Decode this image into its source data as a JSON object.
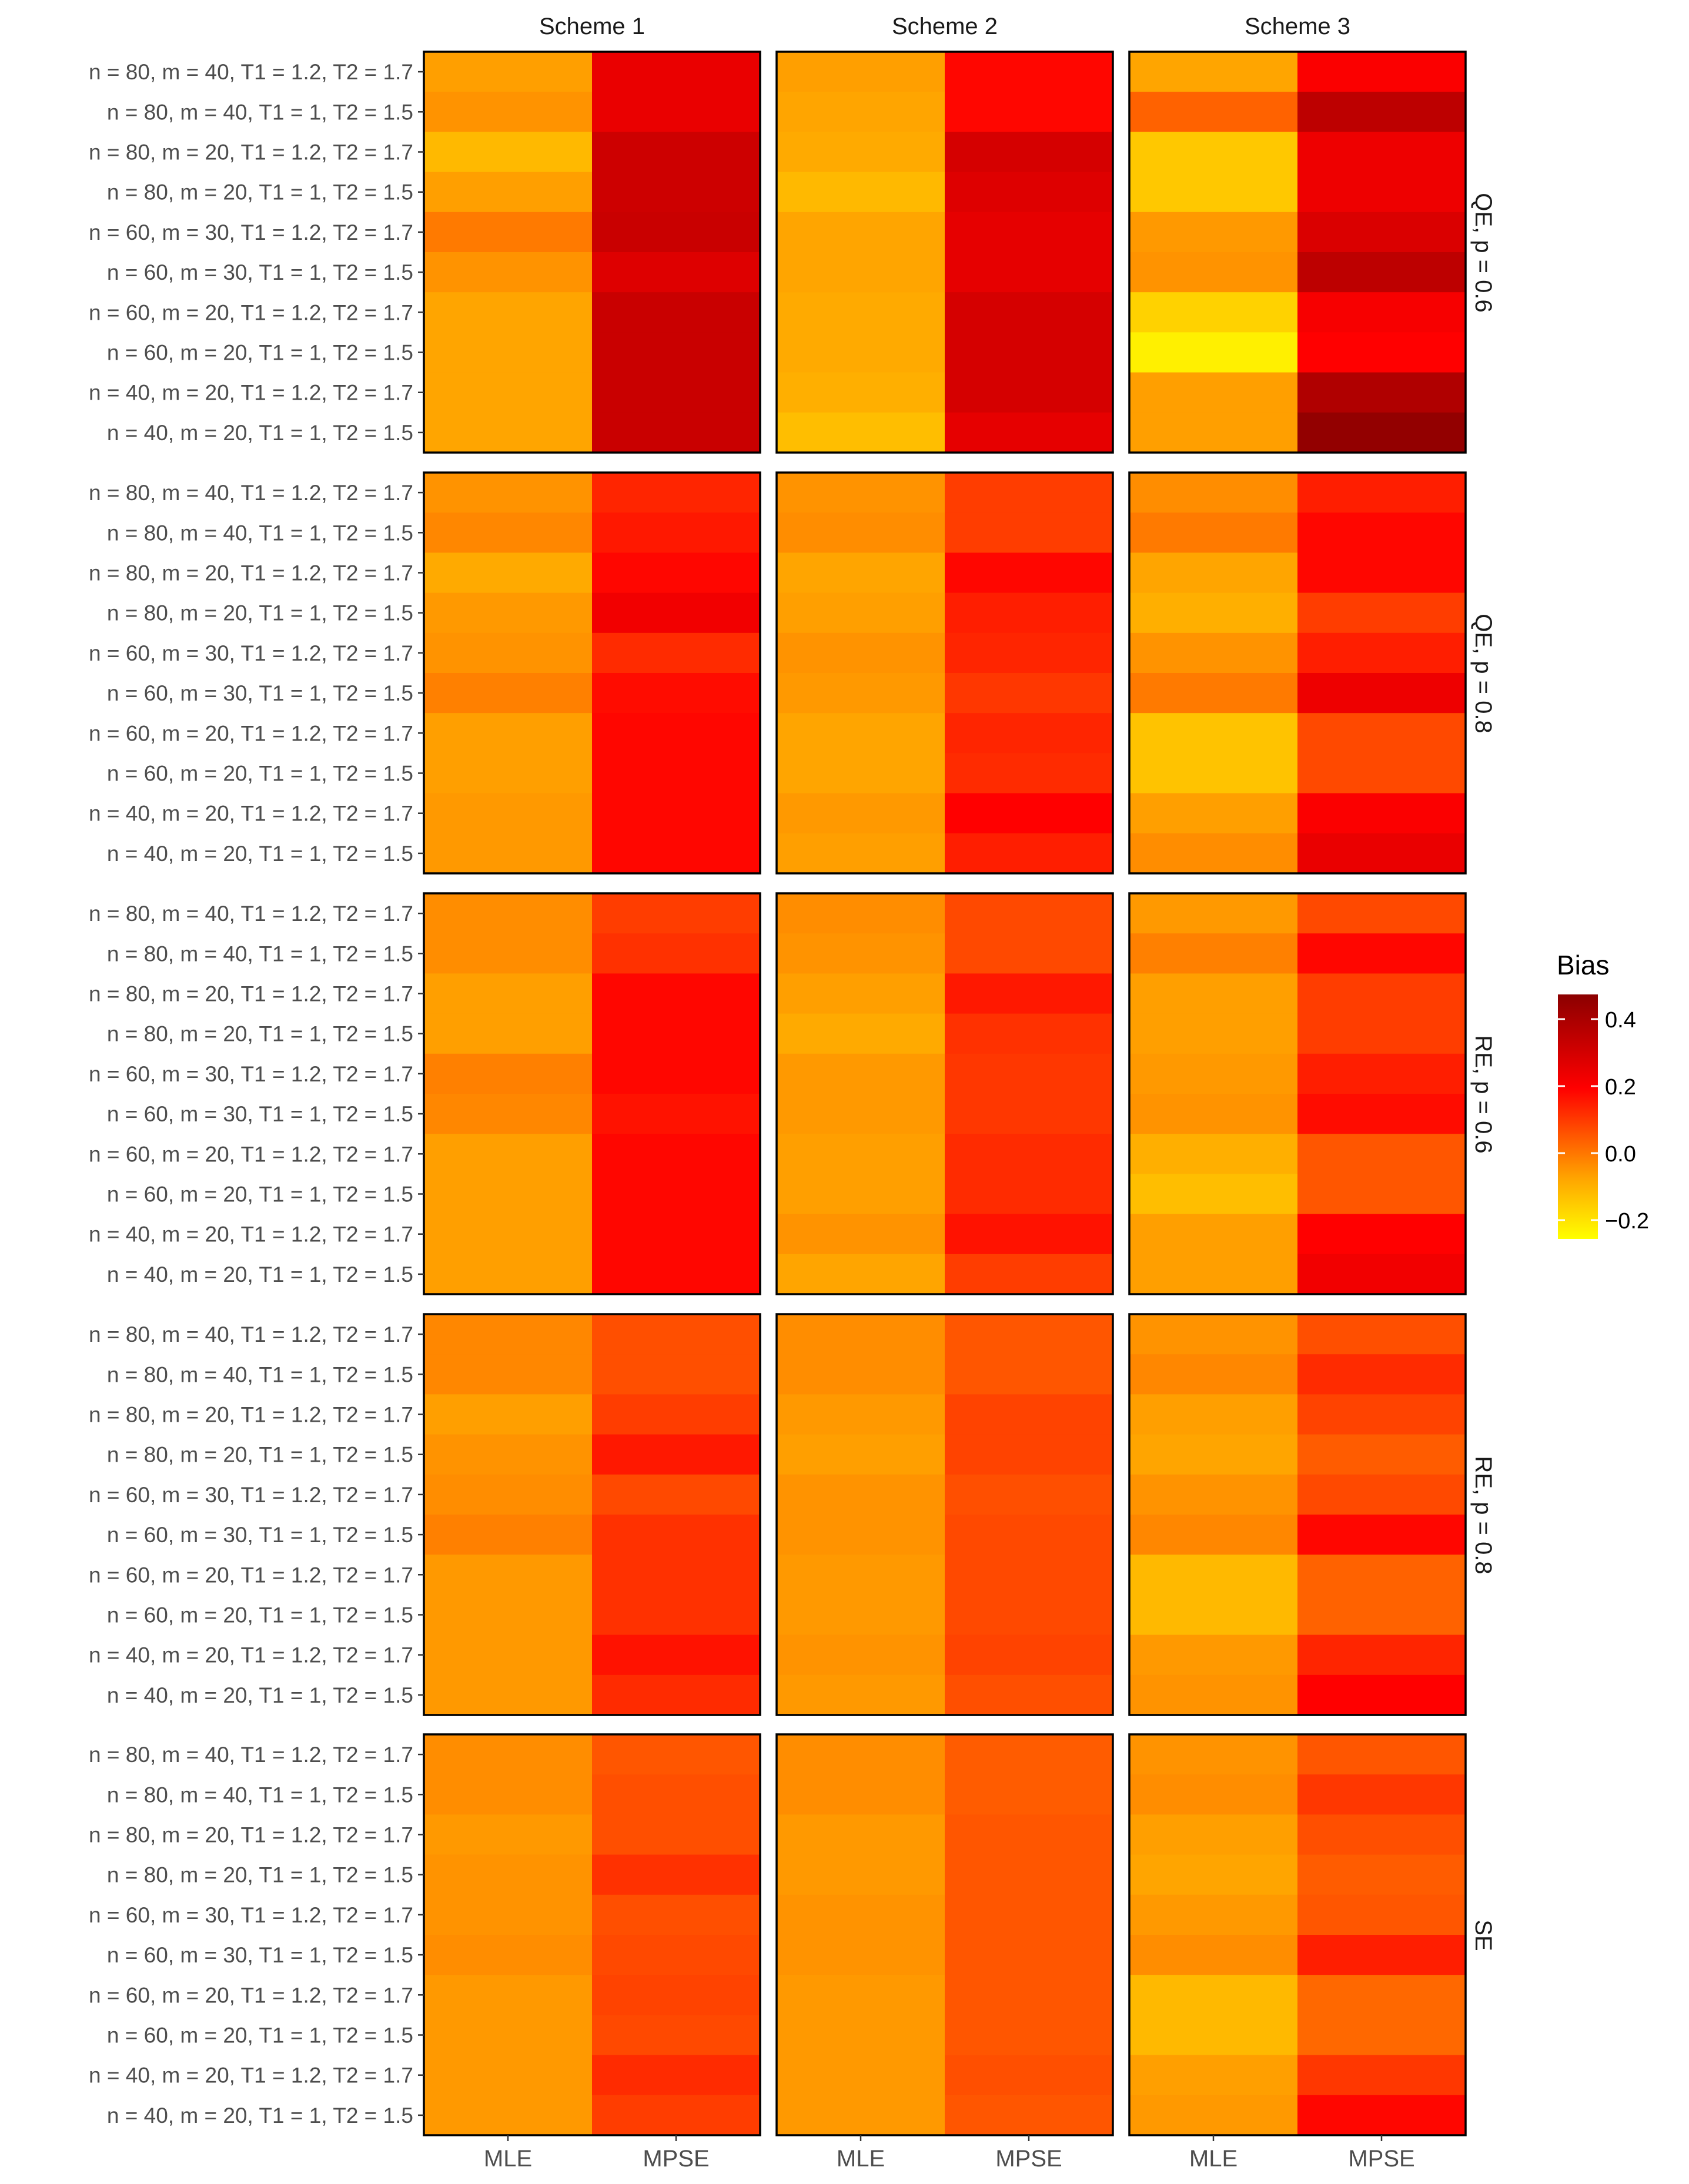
{
  "chart_data": {
    "type": "heatmap",
    "title": "",
    "legend": {
      "title": "Bias",
      "ticks": [
        "0.4",
        "0.2",
        "0.0",
        "−0.2"
      ],
      "tick_values": [
        0.4,
        0.2,
        0.0,
        -0.2
      ],
      "range": [
        -0.25,
        0.48
      ],
      "colors": [
        "#ffff00",
        "#ffa500",
        "#ff0000",
        "#8b0000"
      ],
      "placement": "right"
    },
    "columns": [
      "Scheme 1",
      "Scheme 2",
      "Scheme 3"
    ],
    "rows": [
      "QE, p = 0.6",
      "QE, p = 0.8",
      "RE, p = 0.6",
      "RE, p = 0.8",
      "SE"
    ],
    "x_categories": [
      "MLE",
      "MPSE"
    ],
    "y_categories": [
      "n = 80, m = 40, T1 = 1.2, T2 = 1.7",
      "n = 80, m = 40, T1 = 1, T2 = 1.5",
      "n = 80, m = 20, T1 = 1.2, T2 = 1.7",
      "n = 80, m = 20, T1 = 1, T2 = 1.5",
      "n = 60, m = 30, T1 = 1.2, T2 = 1.7",
      "n = 60, m = 30, T1 = 1, T2 = 1.5",
      "n = 60, m = 20, T1 = 1.2, T2 = 1.7",
      "n = 60, m = 20, T1 = 1, T2 = 1.5",
      "n = 40, m = 20, T1 = 1.2, T2 = 1.7",
      "n = 40, m = 20, T1 = 1, T2 = 1.5"
    ],
    "panels": [
      {
        "row": "QE, p = 0.6",
        "col": "Scheme 1",
        "MLE": [
          -0.06,
          -0.04,
          -0.11,
          -0.06,
          0.0,
          -0.04,
          -0.07,
          -0.07,
          -0.07,
          -0.07
        ],
        "MPSE": [
          0.25,
          0.25,
          0.32,
          0.32,
          0.33,
          0.28,
          0.33,
          0.33,
          0.33,
          0.33
        ]
      },
      {
        "row": "QE, p = 0.6",
        "col": "Scheme 2",
        "MLE": [
          -0.06,
          -0.07,
          -0.08,
          -0.11,
          -0.07,
          -0.07,
          -0.08,
          -0.08,
          -0.09,
          -0.12
        ],
        "MPSE": [
          0.19,
          0.19,
          0.3,
          0.28,
          0.26,
          0.26,
          0.3,
          0.3,
          0.3,
          0.26
        ]
      },
      {
        "row": "QE, p = 0.6",
        "col": "Scheme 3",
        "MLE": [
          -0.07,
          0.04,
          -0.14,
          -0.14,
          -0.05,
          -0.04,
          -0.16,
          -0.22,
          -0.06,
          -0.06
        ],
        "MPSE": [
          0.21,
          0.36,
          0.24,
          0.24,
          0.29,
          0.36,
          0.22,
          0.2,
          0.39,
          0.46
        ]
      },
      {
        "row": "QE, p = 0.8",
        "col": "Scheme 1",
        "MLE": [
          -0.04,
          -0.02,
          -0.08,
          -0.05,
          -0.04,
          -0.01,
          -0.06,
          -0.06,
          -0.05,
          -0.05
        ],
        "MPSE": [
          0.14,
          0.16,
          0.19,
          0.23,
          0.13,
          0.18,
          0.19,
          0.19,
          0.19,
          0.19
        ]
      },
      {
        "row": "QE, p = 0.8",
        "col": "Scheme 2",
        "MLE": [
          -0.04,
          -0.03,
          -0.07,
          -0.06,
          -0.04,
          -0.05,
          -0.07,
          -0.07,
          -0.05,
          -0.06
        ],
        "MPSE": [
          0.1,
          0.1,
          0.19,
          0.15,
          0.14,
          0.11,
          0.14,
          0.13,
          0.2,
          0.15
        ]
      },
      {
        "row": "QE, p = 0.8",
        "col": "Scheme 3",
        "MLE": [
          -0.03,
          0.0,
          -0.07,
          -0.09,
          -0.04,
          0.0,
          -0.13,
          -0.13,
          -0.06,
          -0.03
        ],
        "MPSE": [
          0.15,
          0.19,
          0.19,
          0.1,
          0.15,
          0.24,
          0.08,
          0.08,
          0.21,
          0.25
        ]
      },
      {
        "row": "RE, p = 0.6",
        "col": "Scheme 1",
        "MLE": [
          -0.03,
          -0.03,
          -0.06,
          -0.06,
          -0.01,
          -0.02,
          -0.06,
          -0.06,
          -0.06,
          -0.06
        ],
        "MPSE": [
          0.1,
          0.12,
          0.19,
          0.19,
          0.19,
          0.17,
          0.19,
          0.19,
          0.19,
          0.19
        ]
      },
      {
        "row": "RE, p = 0.6",
        "col": "Scheme 2",
        "MLE": [
          -0.03,
          -0.04,
          -0.06,
          -0.08,
          -0.05,
          -0.05,
          -0.06,
          -0.06,
          -0.04,
          -0.07
        ],
        "MPSE": [
          0.08,
          0.08,
          0.16,
          0.12,
          0.11,
          0.11,
          0.13,
          0.13,
          0.17,
          0.1
        ]
      },
      {
        "row": "RE, p = 0.6",
        "col": "Scheme 3",
        "MLE": [
          -0.05,
          -0.01,
          -0.06,
          -0.06,
          -0.05,
          -0.04,
          -0.09,
          -0.12,
          -0.06,
          -0.06
        ],
        "MPSE": [
          0.08,
          0.19,
          0.1,
          0.1,
          0.15,
          0.18,
          0.06,
          0.06,
          0.2,
          0.23
        ]
      },
      {
        "row": "RE, p = 0.8",
        "col": "Scheme 1",
        "MLE": [
          -0.02,
          -0.02,
          -0.06,
          -0.04,
          -0.03,
          -0.01,
          -0.05,
          -0.05,
          -0.05,
          -0.05
        ],
        "MPSE": [
          0.07,
          0.07,
          0.1,
          0.16,
          0.08,
          0.12,
          0.12,
          0.12,
          0.17,
          0.13
        ]
      },
      {
        "row": "RE, p = 0.8",
        "col": "Scheme 2",
        "MLE": [
          -0.03,
          -0.03,
          -0.05,
          -0.06,
          -0.04,
          -0.04,
          -0.05,
          -0.05,
          -0.04,
          -0.05
        ],
        "MPSE": [
          0.06,
          0.06,
          0.09,
          0.09,
          0.07,
          0.08,
          0.08,
          0.08,
          0.09,
          0.07
        ]
      },
      {
        "row": "RE, p = 0.8",
        "col": "Scheme 3",
        "MLE": [
          -0.04,
          -0.02,
          -0.06,
          -0.07,
          -0.04,
          -0.02,
          -0.11,
          -0.11,
          -0.05,
          -0.04
        ],
        "MPSE": [
          0.07,
          0.13,
          0.09,
          0.05,
          0.08,
          0.19,
          0.04,
          0.04,
          0.14,
          0.2
        ]
      },
      {
        "row": "SE",
        "col": "Scheme 1",
        "MLE": [
          -0.03,
          -0.03,
          -0.05,
          -0.04,
          -0.04,
          -0.03,
          -0.05,
          -0.05,
          -0.05,
          -0.05
        ],
        "MPSE": [
          0.06,
          0.07,
          0.07,
          0.12,
          0.07,
          0.08,
          0.09,
          0.08,
          0.13,
          0.1
        ]
      },
      {
        "row": "SE",
        "col": "Scheme 2",
        "MLE": [
          -0.03,
          -0.03,
          -0.05,
          -0.05,
          -0.04,
          -0.04,
          -0.05,
          -0.05,
          -0.05,
          -0.05
        ],
        "MPSE": [
          0.05,
          0.05,
          0.06,
          0.06,
          0.06,
          0.06,
          0.06,
          0.06,
          0.07,
          0.06
        ]
      },
      {
        "row": "SE",
        "col": "Scheme 3",
        "MLE": [
          -0.04,
          -0.03,
          -0.06,
          -0.07,
          -0.05,
          -0.03,
          -0.11,
          -0.11,
          -0.06,
          -0.05
        ],
        "MPSE": [
          0.06,
          0.11,
          0.07,
          0.05,
          0.06,
          0.15,
          0.03,
          0.03,
          0.11,
          0.19
        ]
      }
    ]
  }
}
